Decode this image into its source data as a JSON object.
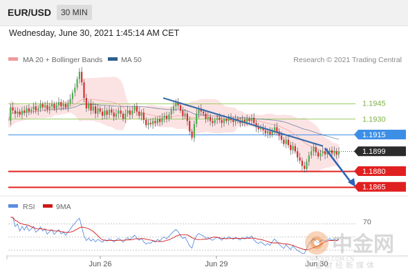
{
  "header": {
    "pair": "EUR/USD",
    "timeframe": "30 MIN"
  },
  "datetime": "Wednesday, June 30, 2021 1:45:14 AM CET",
  "legend": {
    "ma20_label": "MA 20 + Bollinger Bands",
    "ma50_label": "MA 50",
    "ma20_color": "#f19a9a",
    "ma50_color": "#2d5d8f",
    "copyright": "Research © 2021 Trading Central"
  },
  "rsi_legend": {
    "rsi_label": "RSI",
    "ma_label": "9MA",
    "rsi_color": "#5b8de0",
    "ma_color": "#d01818"
  },
  "watermark": {
    "brand": "中金网",
    "site": "CNGOLD.COM.CN",
    "tagline": "中金财经新媒体"
  },
  "chart_data": {
    "type": "candlestick",
    "levels": [
      {
        "value": 1.1945,
        "label": "1.1945",
        "kind": "resistance",
        "color": "#9ccc65"
      },
      {
        "value": 1.193,
        "label": "1.1930",
        "kind": "resistance",
        "color": "#9ccc65"
      },
      {
        "value": 1.1915,
        "label": "1.1915",
        "kind": "pivot",
        "color": "#3d8fe6"
      },
      {
        "value": 1.1899,
        "label": "1.1899",
        "kind": "last-price",
        "color": "#2b2b2b"
      },
      {
        "value": 1.188,
        "label": "1.1880",
        "kind": "support",
        "color": "#e02020"
      },
      {
        "value": 1.1865,
        "label": "1.1865",
        "kind": "support",
        "color": "#e02020"
      }
    ],
    "x_ticks": [
      "Jun 26",
      "Jun 29",
      "Jun 30"
    ],
    "rsi_level": "70",
    "trendline": "descending resistance",
    "forecast": "down",
    "prices": [
      1.1928,
      1.1941,
      1.1938,
      1.1935,
      1.1937,
      1.1934,
      1.1938,
      1.1936,
      1.194,
      1.1937,
      1.1939,
      1.1942,
      1.1938,
      1.194,
      1.1944,
      1.1941,
      1.1943,
      1.1939,
      1.1942,
      1.1944,
      1.194,
      1.1943,
      1.1946,
      1.1942,
      1.1944,
      1.1941,
      1.1945,
      1.1949,
      1.1955,
      1.196,
      1.1968,
      1.1975,
      1.1965,
      1.195,
      1.194,
      1.1945,
      1.1938,
      1.1942,
      1.1935,
      1.194,
      1.1937,
      1.1933,
      1.1938,
      1.1934,
      1.1939,
      1.1936,
      1.1932,
      1.1935,
      1.1938,
      1.1935,
      1.193,
      1.1935,
      1.1938,
      1.1934,
      1.1938,
      1.1942,
      1.1937,
      1.1933,
      1.1936,
      1.1929,
      1.1924,
      1.1926,
      1.1925,
      1.1928,
      1.1926,
      1.193,
      1.1927,
      1.1931,
      1.1933,
      1.193,
      1.1934,
      1.1938,
      1.1942,
      1.1946,
      1.1943,
      1.1938,
      1.1933,
      1.1935,
      1.1928,
      1.1918,
      1.1912,
      1.1925,
      1.1935,
      1.194,
      1.1937,
      1.1935,
      1.193,
      1.1932,
      1.1928,
      1.1926,
      1.1929,
      1.1931,
      1.1929,
      1.1926,
      1.193,
      1.1928,
      1.1931,
      1.1929,
      1.1927,
      1.193,
      1.1928,
      1.1926,
      1.1929,
      1.1927,
      1.193,
      1.1928,
      1.1931,
      1.1926,
      1.1922,
      1.192,
      1.1922,
      1.1919,
      1.1916,
      1.1918,
      1.1915,
      1.1919,
      1.1922,
      1.1918,
      1.1914,
      1.191,
      1.1906,
      1.191,
      1.1905,
      1.19,
      1.1904,
      1.1899,
      1.1893,
      1.189,
      1.1885,
      1.1882,
      1.1889,
      1.1895,
      1.1899,
      1.1903,
      1.1898,
      1.1894,
      1.1897,
      1.1899,
      1.1896,
      1.1898,
      1.19,
      1.1897,
      1.1899,
      1.1896,
      1.1899
    ]
  }
}
